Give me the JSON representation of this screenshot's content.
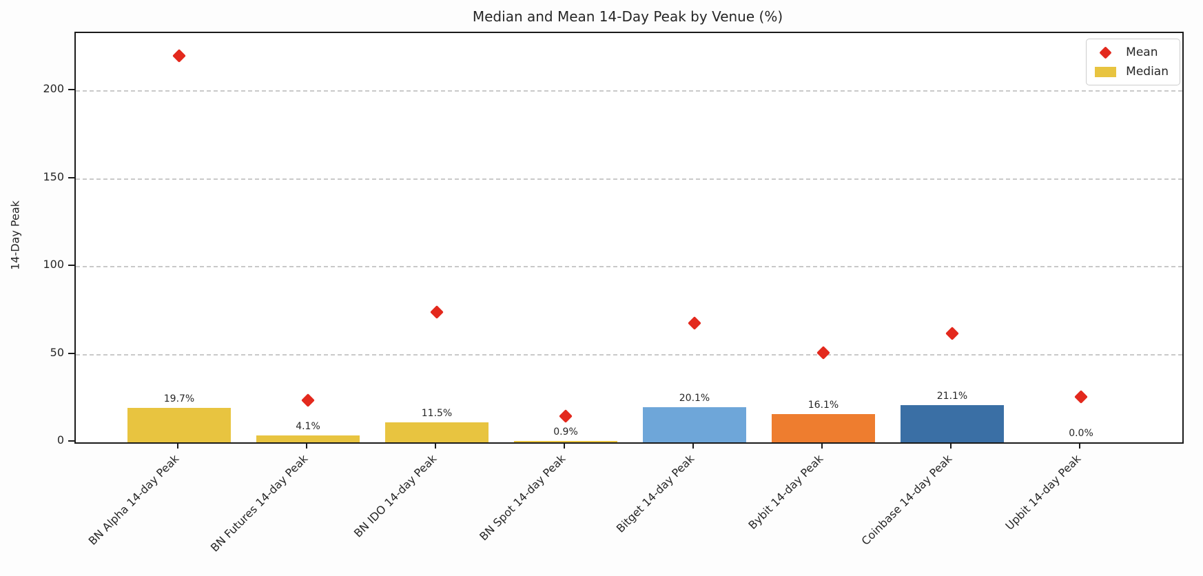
{
  "figure": {
    "title": "Median and Mean 14-Day Peak by Venue (%)"
  },
  "axes": {
    "ylabel": "14-Day Peak",
    "ytick_labels": [
      "0",
      "50",
      "100",
      "150",
      "200"
    ]
  },
  "legend": {
    "items": [
      {
        "label": "Mean",
        "marker": "diamond",
        "color": "#e3291d"
      },
      {
        "label": "Median",
        "marker": "rect",
        "color": "#e8c440"
      }
    ]
  },
  "chart_data": {
    "type": "bar",
    "title": "Median and Mean 14-Day Peak by Venue (%)",
    "xlabel": "",
    "ylabel": "14-Day Peak",
    "ylim": [
      0,
      233
    ],
    "yticks": [
      0,
      50,
      100,
      150,
      200
    ],
    "grid": "horizontal-dashed",
    "legend_position": "upper-right",
    "categories": [
      "BN Alpha 14-day Peak",
      "BN Futures 14-day Peak",
      "BN IDO 14-day Peak",
      "BN Spot 14-day Peak",
      "Bitget 14-day Peak",
      "Bybit 14-day Peak",
      "Coinbase 14-day Peak",
      "Upbit 14-day Peak"
    ],
    "series": [
      {
        "name": "Median",
        "type": "bar",
        "values": [
          19.7,
          4.1,
          11.5,
          0.9,
          20.1,
          16.1,
          21.1,
          0.0
        ],
        "bar_labels": [
          "19.7%",
          "4.1%",
          "11.5%",
          "0.9%",
          "20.1%",
          "16.1%",
          "21.1%",
          "0.0%"
        ],
        "bar_colors": [
          "#e8c440",
          "#e8c440",
          "#e8c440",
          "#e8c440",
          "#6ea6d9",
          "#ee7d2f",
          "#3a6fa5",
          "#e8c440"
        ]
      },
      {
        "name": "Mean",
        "type": "scatter",
        "marker": "diamond",
        "color": "#e3291d",
        "values": [
          220,
          24,
          74,
          15,
          68,
          51,
          62,
          26
        ]
      }
    ]
  }
}
